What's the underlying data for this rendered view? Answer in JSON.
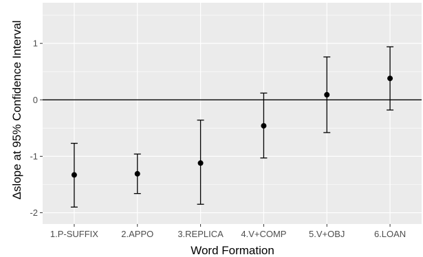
{
  "chart_data": {
    "type": "errorbar",
    "xlabel": "Word Formation",
    "ylabel": "Δslope at 95% Confidence Interval",
    "categories": [
      "1.P-SUFFIX",
      "2.APPO",
      "3.REPLICA",
      "4.V+COMP",
      "5.V+OBJ",
      "6.LOAN"
    ],
    "estimates": [
      -1.33,
      -1.31,
      -1.12,
      -0.46,
      0.09,
      0.38
    ],
    "lower": [
      -1.9,
      -1.66,
      -1.85,
      -1.03,
      -0.58,
      -0.18
    ],
    "upper": [
      -0.77,
      -0.96,
      -0.36,
      0.12,
      0.76,
      0.94
    ],
    "ylim": [
      -2.2,
      1.72
    ],
    "yticks": [
      -2,
      -1,
      0,
      1
    ],
    "ytick_labels": [
      "-2",
      "-1",
      "0",
      "1"
    ],
    "reference_line": 0,
    "grid": true,
    "panel_background": "#ebebeb",
    "grid_color": "#ffffff",
    "point_color": "#000000"
  }
}
